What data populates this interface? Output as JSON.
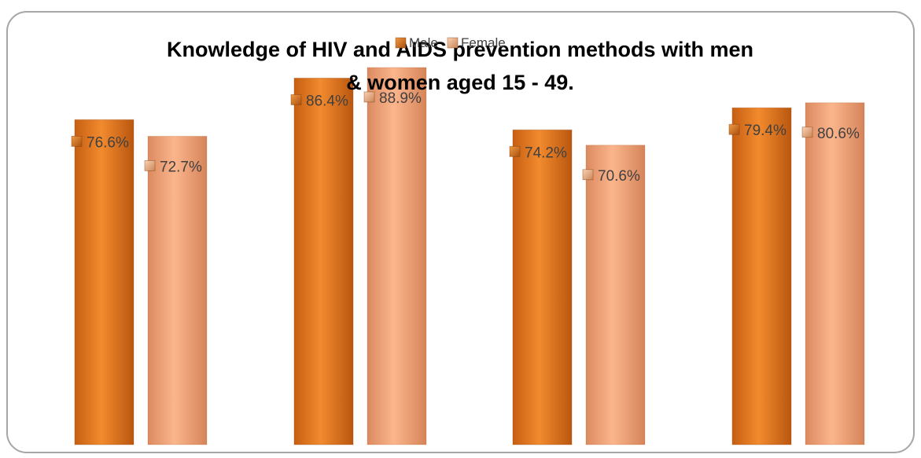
{
  "chart_data": {
    "type": "bar",
    "title_line1": "Knowledge of HIV and AIDS prevention methods with men",
    "title_line2": "& women aged 15 - 49.",
    "categories": [
      "",
      "",
      "",
      ""
    ],
    "series": [
      {
        "name": "Male",
        "values": [
          76.6,
          86.4,
          74.2,
          79.4
        ],
        "labels": [
          "76.6%",
          "86.4%",
          "74.2%",
          "79.4%"
        ],
        "color": "#e87a22"
      },
      {
        "name": "Female",
        "values": [
          72.7,
          88.9,
          70.6,
          80.6
        ],
        "labels": [
          "72.7%",
          "88.9%",
          "70.6%",
          "80.6%"
        ],
        "color": "#f5a878"
      }
    ],
    "ylim": [
      0,
      100
    ],
    "grid": false,
    "legend": "top"
  }
}
